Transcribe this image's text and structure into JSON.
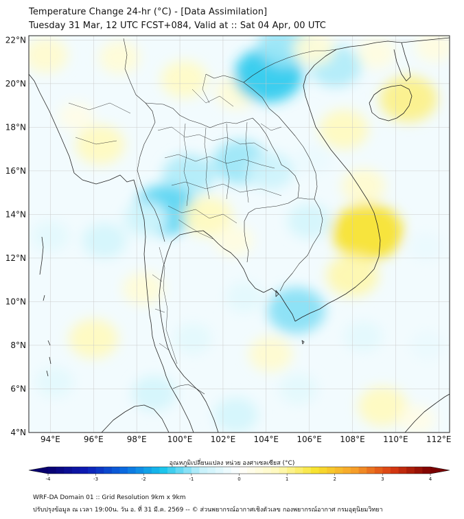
{
  "header": {
    "title_line1": "Temperature Change 24-hr (°C) - [Data Assimilation]",
    "title_line2": "Tuesday 31 Mar, 12 UTC FCST+084, Valid at :: Sat 04 Apr, 00 UTC"
  },
  "map": {
    "lat_labels": [
      "22°N",
      "20°N",
      "18°N",
      "16°N",
      "14°N",
      "12°N",
      "10°N",
      "8°N",
      "6°N",
      "4°N"
    ],
    "lon_labels": [
      "94°E",
      "96°E",
      "98°E",
      "100°E",
      "102°E",
      "104°E",
      "106°E",
      "108°E",
      "110°E",
      "112°E"
    ],
    "field_anomalies": [
      {
        "lon": 93.8,
        "lat": 21.3,
        "value": 0.6
      },
      {
        "lon": 97.2,
        "lat": 21.2,
        "value": 0.5
      },
      {
        "lon": 100.2,
        "lat": 20.2,
        "value": 0.7
      },
      {
        "lon": 102.6,
        "lat": 19.6,
        "value": 0.5
      },
      {
        "lon": 104.1,
        "lat": 20.4,
        "value": -1.5
      },
      {
        "lon": 104.9,
        "lat": 21.8,
        "value": -1.0
      },
      {
        "lon": 107.2,
        "lat": 20.8,
        "value": -0.9
      },
      {
        "lon": 106.2,
        "lat": 21.6,
        "value": 0.5
      },
      {
        "lon": 109.1,
        "lat": 21.4,
        "value": 0.4
      },
      {
        "lon": 110.6,
        "lat": 19.3,
        "value": 1.1
      },
      {
        "lon": 111.8,
        "lat": 21.7,
        "value": 0.4
      },
      {
        "lon": 96.3,
        "lat": 17.2,
        "value": 0.8
      },
      {
        "lon": 95.2,
        "lat": 18.5,
        "value": 0.3
      },
      {
        "lon": 102.8,
        "lat": 16.4,
        "value": -1.0
      },
      {
        "lon": 104.2,
        "lat": 16.0,
        "value": -0.7
      },
      {
        "lon": 100.4,
        "lat": 15.8,
        "value": -0.9
      },
      {
        "lon": 99.3,
        "lat": 14.2,
        "value": -1.3
      },
      {
        "lon": 98.4,
        "lat": 13.8,
        "value": -0.6
      },
      {
        "lon": 101.3,
        "lat": 13.9,
        "value": 0.8
      },
      {
        "lon": 102.5,
        "lat": 12.8,
        "value": 0.4
      },
      {
        "lon": 107.6,
        "lat": 17.9,
        "value": 0.8
      },
      {
        "lon": 106.2,
        "lat": 16.5,
        "value": -0.3
      },
      {
        "lon": 108.7,
        "lat": 13.2,
        "value": 1.6
      },
      {
        "lon": 108.0,
        "lat": 11.2,
        "value": 0.9
      },
      {
        "lon": 108.5,
        "lat": 15.3,
        "value": 0.6
      },
      {
        "lon": 106.0,
        "lat": 13.7,
        "value": -0.6
      },
      {
        "lon": 105.4,
        "lat": 9.6,
        "value": -1.1
      },
      {
        "lon": 94.0,
        "lat": 13.0,
        "value": -0.4
      },
      {
        "lon": 96.5,
        "lat": 12.8,
        "value": -0.6
      },
      {
        "lon": 96.0,
        "lat": 8.3,
        "value": 0.8
      },
      {
        "lon": 94.2,
        "lat": 6.3,
        "value": -0.4
      },
      {
        "lon": 98.3,
        "lat": 10.6,
        "value": 0.5
      },
      {
        "lon": 103.0,
        "lat": 10.2,
        "value": -0.4
      },
      {
        "lon": 100.6,
        "lat": 8.3,
        "value": -0.4
      },
      {
        "lon": 104.2,
        "lat": 7.6,
        "value": 0.6
      },
      {
        "lon": 102.6,
        "lat": 4.8,
        "value": -0.6
      },
      {
        "lon": 98.8,
        "lat": 5.8,
        "value": -0.6
      },
      {
        "lon": 105.5,
        "lat": 6.0,
        "value": -0.4
      },
      {
        "lon": 108.5,
        "lat": 8.4,
        "value": -0.4
      },
      {
        "lon": 109.4,
        "lat": 5.2,
        "value": 0.8
      },
      {
        "lon": 111.0,
        "lat": 4.6,
        "value": 0.3
      },
      {
        "lon": 111.5,
        "lat": 8.0,
        "value": -0.3
      },
      {
        "lon": 111.4,
        "lat": 12.5,
        "value": -0.3
      }
    ]
  },
  "colorbar": {
    "label": "อุณหภูมิเปลี่ยนแปลง หน่วย องศาเซลเซียส (°C)",
    "ticks": [
      "-4",
      "-3",
      "-2",
      "-1",
      "0",
      "1",
      "2",
      "3",
      "4"
    ],
    "min": -4,
    "max": 4,
    "colors": [
      "#08006e",
      "#0d1bb5",
      "#0a6be0",
      "#18c4ec",
      "#c6f1fb",
      "#ffffff",
      "#fffabe",
      "#f7e22e",
      "#f7a02a",
      "#d93a12",
      "#7a0000"
    ]
  },
  "footer": {
    "line1": "WRF-DA Domain 01 :: Grid Resolution 9km x 9km",
    "line2": "ปรับปรุงข้อมูล ณ เวลา 19:00น. วัน อ. ที่ 31 มี.ค. 2569 -- © ส่วนพยากรณ์อากาศเชิงตัวเลข กองพยากรณ์อากาศ กรมอุตุนิยมวิทยา"
  }
}
